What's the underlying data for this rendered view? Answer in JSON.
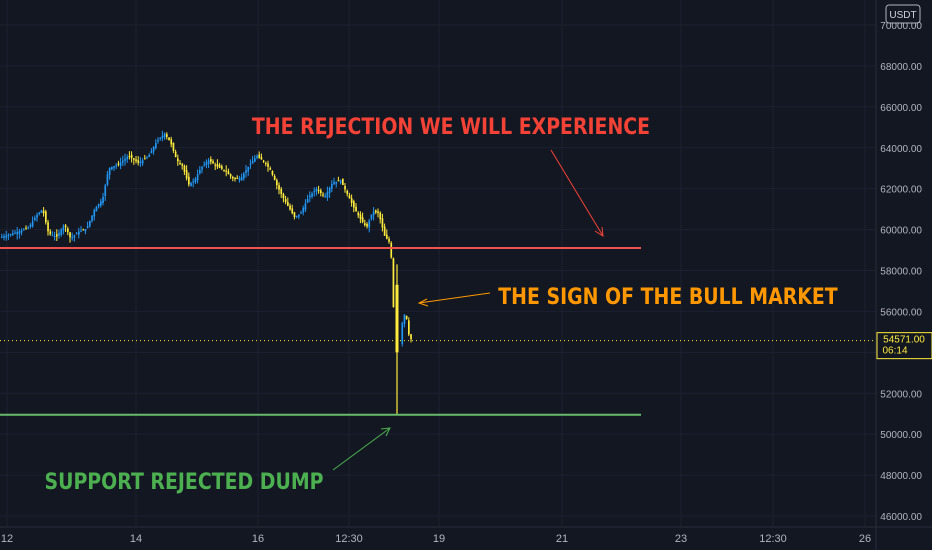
{
  "quote_currency": "USDT",
  "price_label": {
    "value": "54571.00",
    "countdown": "06:14"
  },
  "annotations": {
    "rejection": "THE REJECTION WE WILL EXPERIENCE",
    "bull_sign": "THE SIGN OF THE BULL MARKET",
    "support": "SUPPORT REJECTED DUMP"
  },
  "colors": {
    "background": "#131722",
    "up_candle": "#2196f3",
    "down_candle": "#ffeb3b",
    "resistance": "#ef5350",
    "support": "#66bb6a",
    "rejection_text": "#f44336",
    "bull_text": "#ff9800",
    "support_text": "#4caf50"
  },
  "chart_data": {
    "type": "candlestick",
    "y_ticks": [
      "46000.00",
      "48000.00",
      "50000.00",
      "52000.00",
      "54000.00",
      "56000.00",
      "58000.00",
      "60000.00",
      "62000.00",
      "64000.00",
      "66000.00",
      "68000.00",
      "70000.00"
    ],
    "x_ticks": [
      "12",
      "14",
      "16",
      "12:30",
      "19",
      "21",
      "23",
      "12:30",
      "26"
    ],
    "ylim": [
      45700,
      70900
    ],
    "current_price": 54571,
    "resistance_level": 59100,
    "support_level": 50950,
    "price_path": [
      [
        0,
        59600
      ],
      [
        10,
        59750
      ],
      [
        20,
        59900
      ],
      [
        30,
        60100
      ],
      [
        38,
        60700
      ],
      [
        44,
        61000
      ],
      [
        50,
        59800
      ],
      [
        58,
        59650
      ],
      [
        66,
        60250
      ],
      [
        72,
        59550
      ],
      [
        80,
        59900
      ],
      [
        88,
        60050
      ],
      [
        96,
        61000
      ],
      [
        104,
        61500
      ],
      [
        110,
        63000
      ],
      [
        120,
        63200
      ],
      [
        130,
        63600
      ],
      [
        140,
        63250
      ],
      [
        150,
        63600
      ],
      [
        158,
        64300
      ],
      [
        166,
        64700
      ],
      [
        172,
        64250
      ],
      [
        178,
        63400
      ],
      [
        184,
        63100
      ],
      [
        190,
        62200
      ],
      [
        196,
        62400
      ],
      [
        202,
        63000
      ],
      [
        210,
        63400
      ],
      [
        218,
        63100
      ],
      [
        226,
        62900
      ],
      [
        234,
        62500
      ],
      [
        242,
        62500
      ],
      [
        250,
        63100
      ],
      [
        258,
        63600
      ],
      [
        266,
        63300
      ],
      [
        272,
        62900
      ],
      [
        278,
        62200
      ],
      [
        284,
        61600
      ],
      [
        290,
        61100
      ],
      [
        296,
        60600
      ],
      [
        302,
        60800
      ],
      [
        310,
        61600
      ],
      [
        318,
        62000
      ],
      [
        326,
        61600
      ],
      [
        334,
        62300
      ],
      [
        342,
        62400
      ],
      [
        350,
        61600
      ],
      [
        356,
        61000
      ],
      [
        362,
        60500
      ],
      [
        368,
        60100
      ],
      [
        374,
        60900
      ],
      [
        380,
        60800
      ],
      [
        386,
        59700
      ],
      [
        392,
        59300
      ],
      [
        395,
        56000
      ],
      [
        398,
        53600
      ],
      [
        401,
        54300
      ],
      [
        404,
        55600
      ],
      [
        407,
        56000
      ],
      [
        410,
        54900
      ],
      [
        413,
        54571
      ]
    ],
    "dump_candle": {
      "x": 397,
      "open": 57300,
      "high": 58300,
      "low": 50950,
      "close": 54000
    }
  }
}
